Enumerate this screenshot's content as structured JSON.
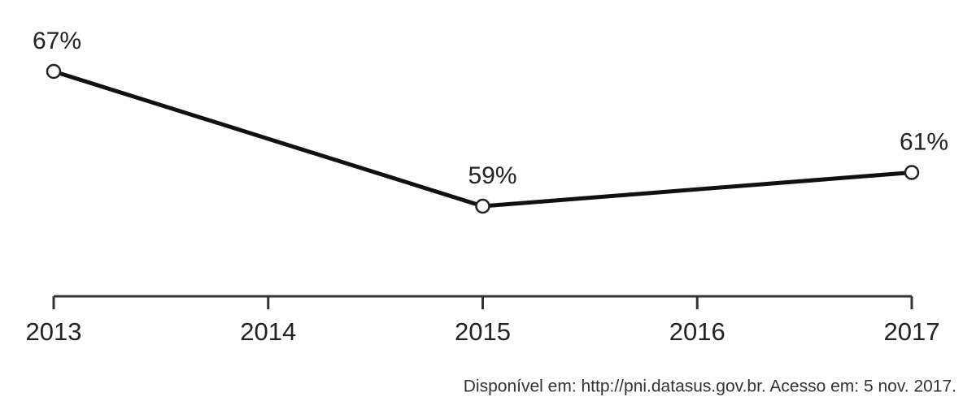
{
  "chart_data": {
    "type": "line",
    "x": [
      2013,
      2015,
      2017
    ],
    "values": [
      67,
      59,
      61
    ],
    "value_labels": [
      "67%",
      "59%",
      "61%"
    ],
    "color": "#111111",
    "xlim": [
      2013,
      2017
    ],
    "xticks": [
      2013,
      2014,
      2015,
      2016,
      2017
    ],
    "ylim": [
      54,
      71
    ],
    "source": "Disponível em: http://pni.datasus.gov.br. Acesso em: 5 nov. 2017."
  }
}
